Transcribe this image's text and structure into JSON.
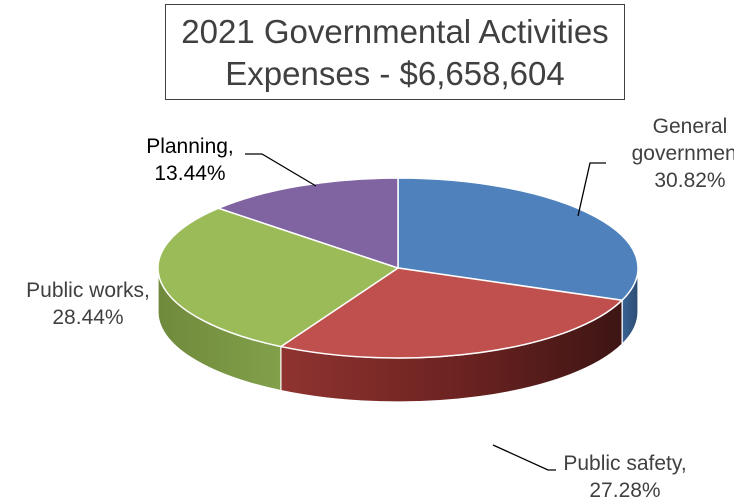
{
  "chart_data": {
    "type": "pie",
    "style": "3d",
    "title_lines": [
      "2021 Governmental Activities",
      "Expenses - $6,658,604"
    ],
    "legend": "none",
    "slices": [
      {
        "label_lines": [
          "General",
          "government,",
          "30.82%"
        ],
        "value": 30.82,
        "color": "#4F81BD"
      },
      {
        "label_lines": [
          "Public safety,",
          "27.28%"
        ],
        "value": 27.28,
        "color": "#C0504D"
      },
      {
        "label_lines": [
          "Public works,",
          "28.44%"
        ],
        "value": 28.44,
        "color": "#9BBB59"
      },
      {
        "label_lines": [
          "Planning,",
          "13.44%"
        ],
        "value": 13.44,
        "color": "#8064A2"
      }
    ]
  }
}
